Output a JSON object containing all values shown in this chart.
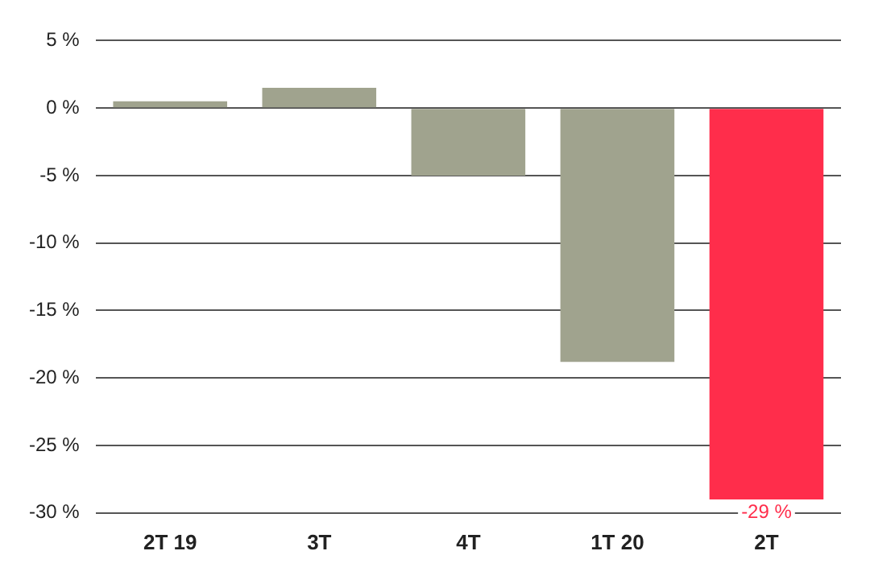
{
  "chart_data": {
    "type": "bar",
    "categories": [
      "2T 19",
      "3T",
      "4T",
      "1T 20",
      "2T"
    ],
    "values": [
      0.5,
      1.5,
      -5,
      -18.8,
      -29
    ],
    "colors": [
      "#a0a38e",
      "#a0a38e",
      "#a0a38e",
      "#a0a38e",
      "#ff2d4b"
    ],
    "value_labels": [
      null,
      null,
      null,
      null,
      "-29 %"
    ],
    "ylim": [
      -30,
      5
    ],
    "yticks": [
      {
        "value": 5,
        "label": "5 %"
      },
      {
        "value": 0,
        "label": "0 %"
      },
      {
        "value": -5,
        "label": "-5 %"
      },
      {
        "value": -10,
        "label": "-10 %"
      },
      {
        "value": -15,
        "label": "-15 %"
      },
      {
        "value": -20,
        "label": "-20 %"
      },
      {
        "value": -25,
        "label": "-25 %"
      },
      {
        "value": -30,
        "label": "-30 %"
      }
    ],
    "grid": "y"
  }
}
